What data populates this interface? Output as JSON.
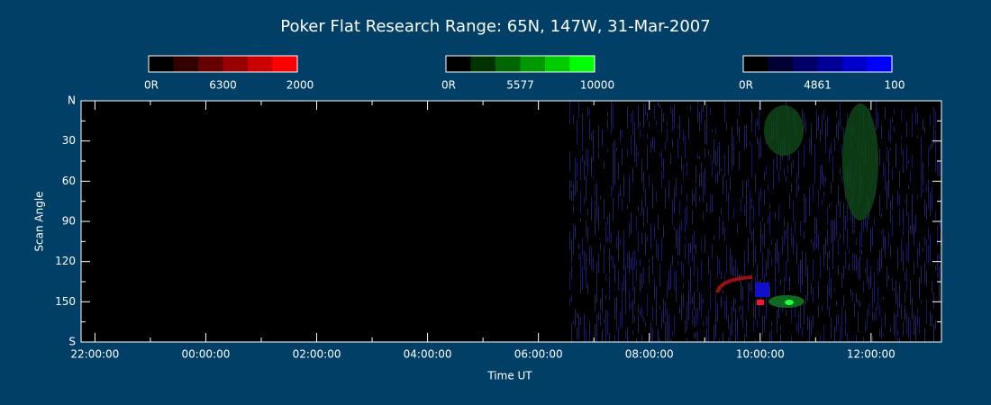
{
  "chart_data": {
    "type": "keogram",
    "title": "Poker Flat Research Range: 65N, 147W, 31-Mar-2007",
    "xlabel": "Time UT",
    "ylabel": "Scan Angle",
    "xlim": [
      21.75,
      37.27
    ],
    "xticks": [
      {
        "value": 22,
        "label": "22:00:00"
      },
      {
        "value": 24,
        "label": "00:00:00"
      },
      {
        "value": 26,
        "label": "02:00:00"
      },
      {
        "value": 28,
        "label": "04:00:00"
      },
      {
        "value": 30,
        "label": "06:00:00"
      },
      {
        "value": 32,
        "label": "08:00:00"
      },
      {
        "value": 34,
        "label": "10:00:00"
      },
      {
        "value": 36,
        "label": "12:00:00"
      }
    ],
    "ylim": [
      0,
      180
    ],
    "yticks": [
      {
        "value": 0,
        "label": "N"
      },
      30,
      60,
      90,
      120,
      150,
      {
        "value": 180,
        "label": "S"
      }
    ],
    "colorbars": [
      {
        "colors": [
          "#000000",
          "#330000",
          "#660000",
          "#990000",
          "#cc0000",
          "#ff0000"
        ],
        "labels": [
          "0R",
          "6300",
          "2000"
        ]
      },
      {
        "colors": [
          "#000000",
          "#003300",
          "#006600",
          "#009900",
          "#00cc00",
          "#00ff00"
        ],
        "labels": [
          "0R",
          "5577",
          "10000"
        ]
      },
      {
        "colors": [
          "#000000",
          "#000033",
          "#000066",
          "#000099",
          "#0000cc",
          "#0000ff"
        ],
        "labels": [
          "0R",
          "4861",
          "100"
        ]
      }
    ]
  }
}
